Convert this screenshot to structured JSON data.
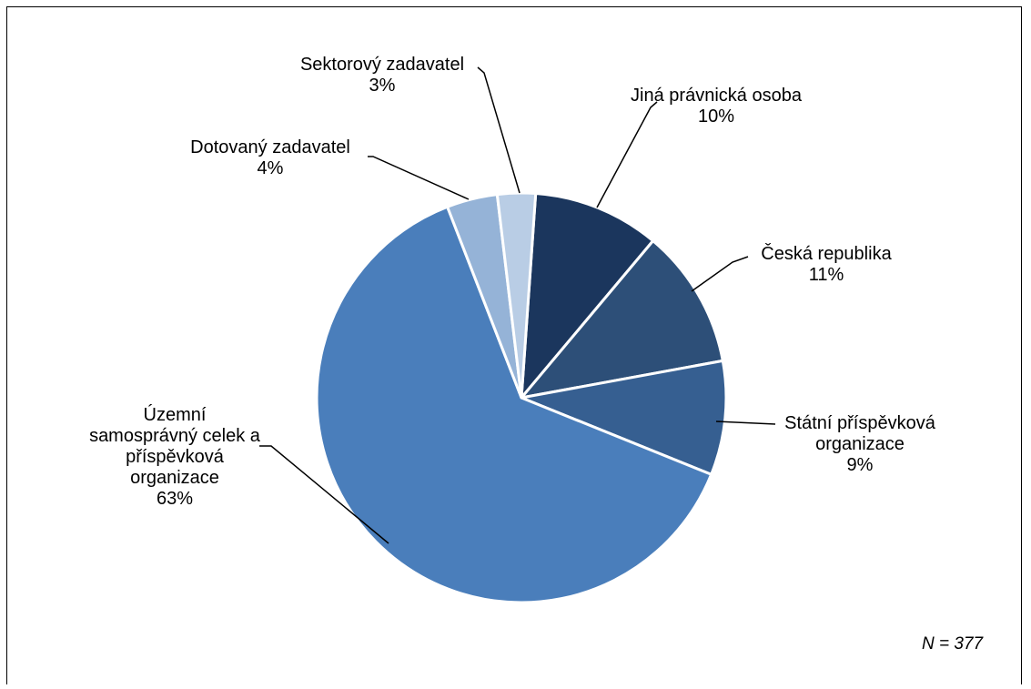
{
  "chart_data": {
    "type": "pie",
    "title": "",
    "slices": [
      {
        "label": "Jiná právnická osoba",
        "value": 10,
        "pct_label": "10%",
        "color": "#1b365d"
      },
      {
        "label": "Česká republika",
        "value": 11,
        "pct_label": "11%",
        "color": "#2d4f78"
      },
      {
        "label": "Státní příspěvková organizace",
        "value": 9,
        "pct_label": "9%",
        "color": "#365f91"
      },
      {
        "label": "Územní samosprávný celek a příspěvková organizace",
        "value": 63,
        "pct_label": "63%",
        "color": "#4a7ebb"
      },
      {
        "label": "Dotovaný zadavatel",
        "value": 4,
        "pct_label": "4%",
        "color": "#95b3d7"
      },
      {
        "label": "Sektorový zadavatel",
        "value": 3,
        "pct_label": "3%",
        "color": "#b9cde5"
      }
    ],
    "label_lines": [
      [
        "Jiná právnická osoba"
      ],
      [
        "Česká republika"
      ],
      [
        "Státní příspěvková",
        "organizace"
      ],
      [
        "Územní",
        "samosprávný celek a",
        "příspěvková",
        "organizace"
      ],
      [
        "Dotovaný zadavatel"
      ],
      [
        "Sektorový zadavatel"
      ]
    ],
    "note": "N = 377"
  }
}
